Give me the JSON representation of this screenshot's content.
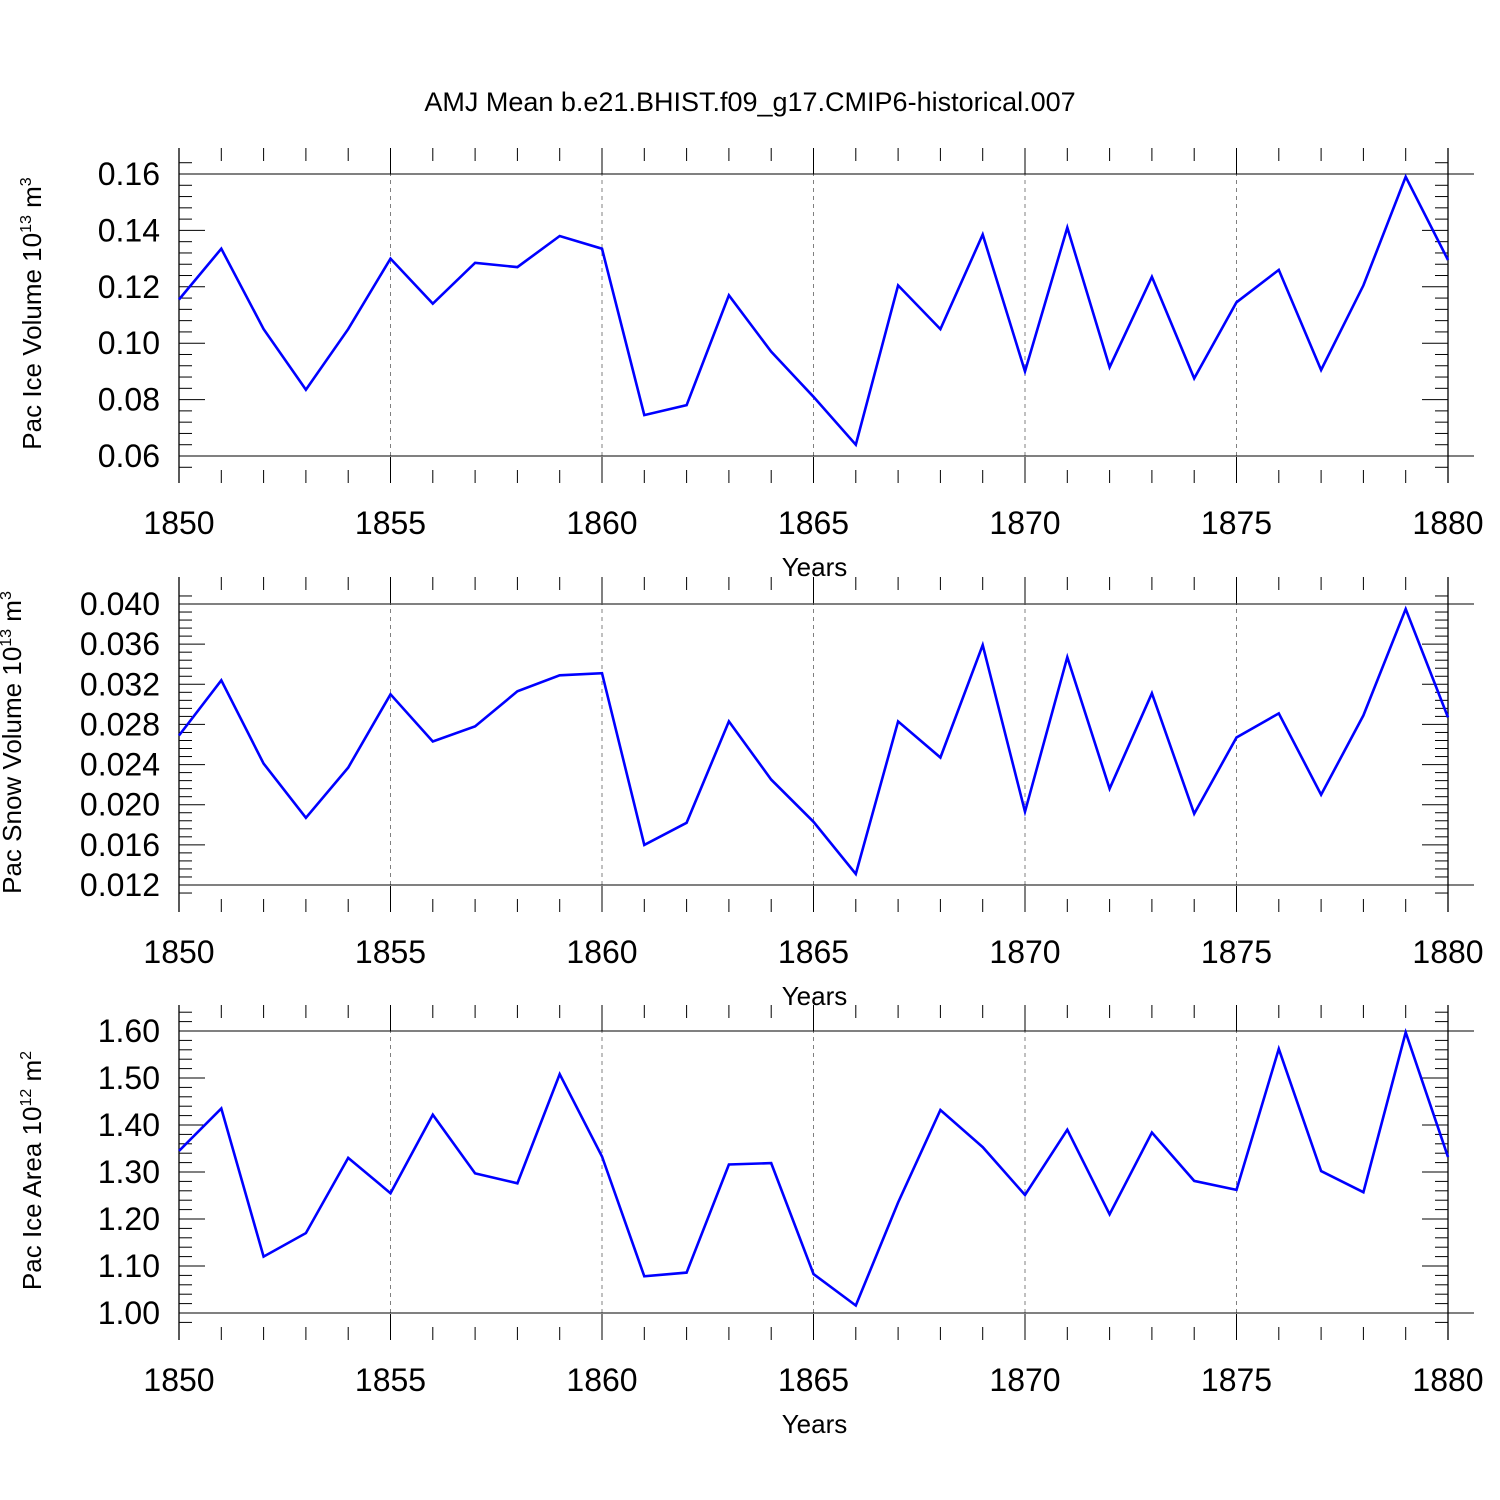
{
  "figure": {
    "title": "AMJ Mean b.e21.BHIST.f09_g17.CMIP6-historical.007"
  },
  "style": {
    "line_color": "#0000ff",
    "axis_color": "#000000",
    "grid_color": "#808080"
  },
  "chart_data": [
    {
      "type": "line",
      "ylabel": {
        "text": "Pac Ice Volume 10",
        "exp": "13",
        "unit": " m",
        "unit_exp": "3"
      },
      "xlabel": "Years",
      "xlim": [
        1850,
        1880
      ],
      "ylim": [
        0.055,
        0.165
      ],
      "xticks": [
        1850,
        1855,
        1860,
        1865,
        1870,
        1875,
        1880
      ],
      "yticks": [
        "0.06",
        "0.08",
        "0.10",
        "0.12",
        "0.14",
        "0.16"
      ],
      "grid": "vertical dashed",
      "x": [
        1850,
        1851,
        1852,
        1853,
        1854,
        1855,
        1856,
        1857,
        1858,
        1859,
        1860,
        1861,
        1862,
        1863,
        1864,
        1865,
        1866,
        1867,
        1868,
        1869,
        1870,
        1871,
        1872,
        1873,
        1874,
        1875,
        1876,
        1877,
        1878,
        1879,
        1880
      ],
      "series": [
        {
          "values": [
            0.1155,
            0.1335,
            0.105,
            0.0835,
            0.105,
            0.13,
            0.114,
            0.1285,
            0.127,
            0.138,
            0.1335,
            0.0745,
            0.078,
            0.117,
            0.097,
            0.081,
            0.064,
            0.1205,
            0.105,
            0.1385,
            0.09,
            0.141,
            0.0915,
            0.1235,
            0.0875,
            0.1145,
            0.126,
            0.0905,
            0.1205,
            0.159,
            0.1295
          ]
        }
      ]
    },
    {
      "type": "line",
      "ylabel": {
        "text": "Pac Snow Volume 10",
        "exp": "13",
        "unit": " m",
        "unit_exp": "3"
      },
      "xlabel": "Years",
      "xlim": [
        1850,
        1880
      ],
      "ylim": [
        0.0105,
        0.0415
      ],
      "xticks": [
        1850,
        1855,
        1860,
        1865,
        1870,
        1875,
        1880
      ],
      "yticks": [
        "0.012",
        "0.016",
        "0.020",
        "0.024",
        "0.028",
        "0.032",
        "0.036",
        "0.040"
      ],
      "grid": "vertical dashed",
      "x": [
        1850,
        1851,
        1852,
        1853,
        1854,
        1855,
        1856,
        1857,
        1858,
        1859,
        1860,
        1861,
        1862,
        1863,
        1864,
        1865,
        1866,
        1867,
        1868,
        1869,
        1870,
        1871,
        1872,
        1873,
        1874,
        1875,
        1876,
        1877,
        1878,
        1879,
        1880
      ],
      "series": [
        {
          "values": [
            0.0269,
            0.0324,
            0.0241,
            0.0187,
            0.0237,
            0.031,
            0.0263,
            0.0278,
            0.0313,
            0.0329,
            0.0331,
            0.016,
            0.0182,
            0.0283,
            0.0225,
            0.0183,
            0.0131,
            0.0283,
            0.0247,
            0.0359,
            0.0193,
            0.0347,
            0.0216,
            0.0311,
            0.0191,
            0.0267,
            0.0291,
            0.021,
            0.0289,
            0.0395,
            0.0287
          ]
        }
      ]
    },
    {
      "type": "line",
      "ylabel": {
        "text": "Pac Ice Area 10",
        "exp": "12",
        "unit": " m",
        "unit_exp": "2"
      },
      "xlabel": "Years",
      "xlim": [
        1850,
        1880
      ],
      "ylim": [
        0.97,
        1.65
      ],
      "xticks": [
        1850,
        1855,
        1860,
        1865,
        1870,
        1875,
        1880
      ],
      "yticks": [
        "1.00",
        "1.10",
        "1.20",
        "1.30",
        "1.40",
        "1.50",
        "1.60"
      ],
      "grid": "vertical dashed",
      "x": [
        1850,
        1851,
        1852,
        1853,
        1854,
        1855,
        1856,
        1857,
        1858,
        1859,
        1860,
        1861,
        1862,
        1863,
        1864,
        1865,
        1866,
        1867,
        1868,
        1869,
        1870,
        1871,
        1872,
        1873,
        1874,
        1875,
        1876,
        1877,
        1878,
        1879,
        1880
      ],
      "series": [
        {
          "values": [
            1.345,
            1.435,
            1.12,
            1.17,
            1.33,
            1.255,
            1.422,
            1.297,
            1.276,
            1.508,
            1.333,
            1.078,
            1.086,
            1.316,
            1.319,
            1.083,
            1.016,
            1.235,
            1.432,
            1.353,
            1.251,
            1.39,
            1.21,
            1.384,
            1.281,
            1.262,
            1.562,
            1.302,
            1.257,
            1.597,
            1.332
          ]
        }
      ]
    }
  ]
}
